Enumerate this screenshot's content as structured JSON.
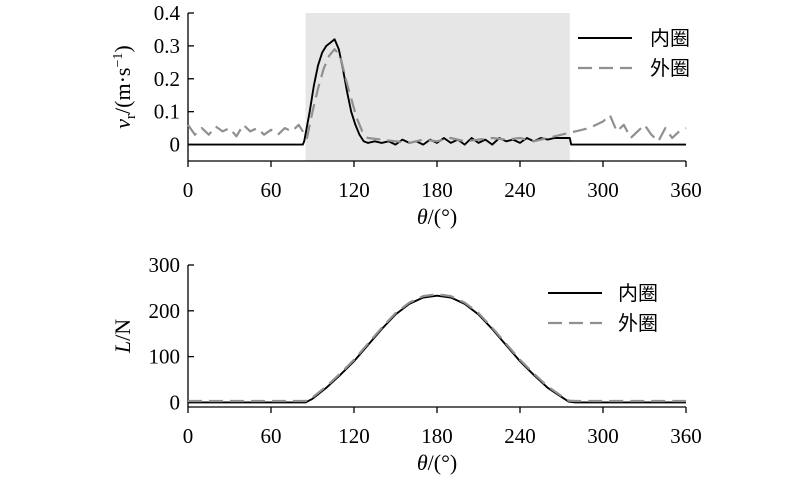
{
  "chart_data": [
    {
      "type": "line",
      "title": "",
      "xlabel": "θ/(°)",
      "ylabel": "v_r/(m·s⁻¹)",
      "xlabel_parts": {
        "var": "θ",
        "unit": "/(°)"
      },
      "ylabel_parts": {
        "var": "v",
        "sub": "r",
        "unit_a": "/(m·s",
        "sup": "−1",
        "unit_b": ")"
      },
      "xlim": [
        0,
        360
      ],
      "ylim": [
        -0.05,
        0.4
      ],
      "xticks": [
        "0",
        "60",
        "120",
        "180",
        "240",
        "300",
        "360"
      ],
      "xtick_values": [
        0,
        60,
        120,
        180,
        240,
        300,
        360
      ],
      "yticks": [
        "0",
        "0.1",
        "0.2",
        "0.3",
        "0.4"
      ],
      "ytick_values": [
        0,
        0.1,
        0.2,
        0.3,
        0.4
      ],
      "grid": false,
      "legend_position": "top-right",
      "shaded_region": {
        "x": [
          85,
          276
        ],
        "color": "#e6e6e6"
      },
      "series": [
        {
          "name": "内圈",
          "color": "#000000",
          "dash": "solid",
          "x": [
            0,
            83,
            84,
            88,
            91,
            94,
            97,
            100,
            103,
            106,
            109,
            112,
            115,
            118,
            121,
            124,
            127,
            130,
            135,
            140,
            145,
            150,
            155,
            160,
            165,
            170,
            175,
            180,
            185,
            190,
            195,
            200,
            205,
            210,
            215,
            220,
            225,
            230,
            235,
            240,
            245,
            250,
            255,
            260,
            265,
            270,
            275,
            276,
            277,
            300,
            330,
            360
          ],
          "y": [
            0,
            0,
            0.01,
            0.1,
            0.18,
            0.24,
            0.28,
            0.3,
            0.31,
            0.32,
            0.29,
            0.23,
            0.16,
            0.1,
            0.06,
            0.03,
            0.01,
            0.005,
            0.01,
            0.005,
            0.01,
            0.0,
            0.015,
            0.005,
            0.01,
            0.0,
            0.015,
            0.005,
            0.02,
            0.005,
            0.015,
            0.0,
            0.02,
            0.005,
            0.015,
            0.0,
            0.02,
            0.01,
            0.015,
            0.005,
            0.02,
            0.01,
            0.02,
            0.015,
            0.02,
            0.02,
            0.02,
            0.02,
            0.0,
            0.0,
            0.0,
            0.0
          ]
        },
        {
          "name": "外圈",
          "color": "#909090",
          "dash": "dashed",
          "x": [
            0,
            5,
            10,
            15,
            20,
            25,
            30,
            35,
            40,
            45,
            50,
            55,
            60,
            65,
            70,
            75,
            80,
            83,
            86,
            90,
            94,
            98,
            102,
            106,
            110,
            114,
            118,
            122,
            126,
            130,
            140,
            150,
            160,
            170,
            180,
            190,
            200,
            210,
            220,
            230,
            240,
            250,
            260,
            270,
            280,
            290,
            300,
            305,
            310,
            315,
            320,
            325,
            330,
            335,
            340,
            345,
            350,
            355,
            360
          ],
          "y": [
            0.06,
            0.03,
            0.05,
            0.03,
            0.055,
            0.04,
            0.05,
            0.025,
            0.06,
            0.04,
            0.05,
            0.03,
            0.045,
            0.03,
            0.05,
            0.04,
            0.06,
            0.04,
            0.02,
            0.1,
            0.17,
            0.23,
            0.27,
            0.29,
            0.27,
            0.2,
            0.14,
            0.08,
            0.04,
            0.02,
            0.015,
            0.01,
            0.005,
            0.015,
            0.01,
            0.02,
            0.01,
            0.015,
            0.02,
            0.015,
            0.02,
            0.01,
            0.02,
            0.03,
            0.04,
            0.05,
            0.07,
            0.09,
            0.04,
            0.06,
            0.02,
            0.04,
            0.06,
            0.03,
            0.01,
            0.05,
            0.02,
            0.04,
            0.05
          ]
        }
      ]
    },
    {
      "type": "line",
      "title": "",
      "xlabel": "θ/(°)",
      "ylabel": "L/N",
      "xlabel_parts": {
        "var": "θ",
        "unit": "/(°)"
      },
      "ylabel_parts": {
        "var": "L",
        "unit": "/N"
      },
      "xlim": [
        0,
        360
      ],
      "ylim": [
        -10,
        300
      ],
      "xticks": [
        "0",
        "60",
        "120",
        "180",
        "240",
        "300",
        "360"
      ],
      "xtick_values": [
        0,
        60,
        120,
        180,
        240,
        300,
        360
      ],
      "yticks": [
        "0",
        "100",
        "200",
        "300"
      ],
      "ytick_values": [
        0,
        100,
        200,
        300
      ],
      "grid": false,
      "legend_position": "top-right",
      "series": [
        {
          "name": "内圈",
          "color": "#000000",
          "dash": "solid",
          "x": [
            0,
            85,
            90,
            100,
            110,
            120,
            130,
            140,
            150,
            160,
            170,
            180,
            190,
            200,
            210,
            220,
            230,
            240,
            250,
            260,
            270,
            275,
            280,
            360
          ],
          "y": [
            0,
            0,
            8,
            32,
            60,
            90,
            125,
            160,
            192,
            215,
            229,
            233,
            229,
            215,
            192,
            160,
            125,
            90,
            60,
            32,
            12,
            2,
            0,
            0
          ]
        },
        {
          "name": "外圈",
          "color": "#909090",
          "dash": "dashed",
          "x": [
            0,
            85,
            90,
            100,
            110,
            120,
            130,
            140,
            150,
            160,
            170,
            180,
            190,
            200,
            210,
            220,
            230,
            240,
            250,
            260,
            270,
            275,
            280,
            360
          ],
          "y": [
            3,
            3,
            11,
            35,
            63,
            93,
            128,
            163,
            195,
            218,
            232,
            236,
            232,
            218,
            195,
            163,
            128,
            93,
            63,
            35,
            14,
            4,
            3,
            3
          ]
        }
      ]
    }
  ]
}
